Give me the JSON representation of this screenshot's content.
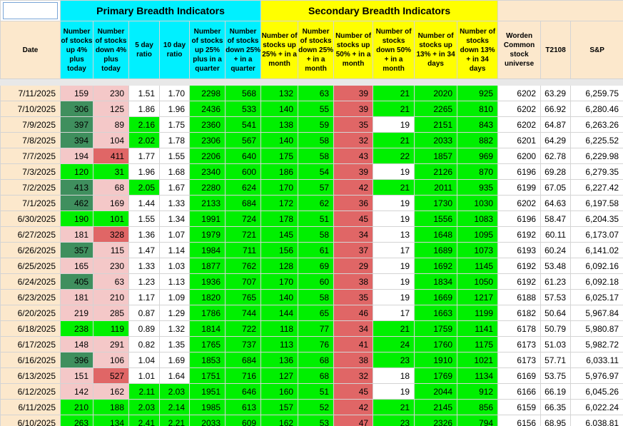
{
  "colors": {
    "dark_green": "#3f8f5e",
    "light_pink": "#f4c8c8",
    "red": "#e06666",
    "bright_green": "#00f000",
    "white": "#ffffff",
    "cyan": "#00f0ff",
    "yellow": "#ffff00",
    "peach": "#fce8cc"
  },
  "header": {
    "primary_title": "Primary Breadth Indicators",
    "secondary_title": "Secondary Breadth Indicators",
    "columns": [
      "Date",
      "Number of stocks up 4% plus today",
      "Number of stocks down 4% plus today",
      "5 day ratio",
      "10 day ratio",
      "Number of stocks up 25% plus in a quarter",
      "Number of stocks down 25% + in a quarter",
      "Number of stocks up 25% + in a month",
      "Number of stocks down 25% + in a month",
      "Number of stocks up 50% + in a month",
      "Number of stocks down 50% + in a month",
      "Number of stocks up 13% + in 34 days",
      "Number of stocks down 13% + in 34 days",
      "Worden Common stock universe",
      "T2108",
      "S&P"
    ]
  },
  "rows": [
    {
      "cells": [
        "7/11/2025",
        "159",
        "230",
        "1.51",
        "1.70",
        "2298",
        "568",
        "132",
        "63",
        "39",
        "21",
        "2020",
        "925",
        "6202",
        "63.29",
        "6,259.75"
      ],
      "fills": [
        "peach",
        "pink",
        "pink",
        "white",
        "white",
        "green",
        "green",
        "green",
        "green",
        "red",
        "green",
        "green",
        "green",
        "white",
        "white",
        "white"
      ]
    },
    {
      "cells": [
        "7/10/2025",
        "306",
        "125",
        "1.86",
        "1.96",
        "2436",
        "533",
        "140",
        "55",
        "39",
        "21",
        "2265",
        "810",
        "6202",
        "66.92",
        "6,280.46"
      ],
      "fills": [
        "peach",
        "dgreen",
        "pink",
        "white",
        "white",
        "green",
        "green",
        "green",
        "green",
        "red",
        "green",
        "green",
        "green",
        "white",
        "white",
        "white"
      ]
    },
    {
      "cells": [
        "7/9/2025",
        "397",
        "89",
        "2.16",
        "1.75",
        "2360",
        "541",
        "138",
        "59",
        "35",
        "19",
        "2151",
        "843",
        "6202",
        "64.87",
        "6,263.26"
      ],
      "fills": [
        "peach",
        "dgreen",
        "pink",
        "green",
        "white",
        "green",
        "green",
        "green",
        "green",
        "red",
        "white",
        "green",
        "green",
        "white",
        "white",
        "white"
      ]
    },
    {
      "cells": [
        "7/8/2025",
        "394",
        "104",
        "2.02",
        "1.78",
        "2306",
        "567",
        "140",
        "58",
        "32",
        "21",
        "2033",
        "882",
        "6201",
        "64.29",
        "6,225.52"
      ],
      "fills": [
        "peach",
        "dgreen",
        "pink",
        "green",
        "white",
        "green",
        "green",
        "green",
        "green",
        "red",
        "green",
        "green",
        "green",
        "white",
        "white",
        "white"
      ]
    },
    {
      "cells": [
        "7/7/2025",
        "194",
        "411",
        "1.77",
        "1.55",
        "2206",
        "640",
        "175",
        "58",
        "43",
        "22",
        "1857",
        "969",
        "6200",
        "62.78",
        "6,229.98"
      ],
      "fills": [
        "peach",
        "pink",
        "red",
        "white",
        "white",
        "green",
        "green",
        "green",
        "green",
        "red",
        "green",
        "green",
        "green",
        "white",
        "white",
        "white"
      ]
    },
    {
      "cells": [
        "7/3/2025",
        "120",
        "31",
        "1.96",
        "1.68",
        "2340",
        "600",
        "186",
        "54",
        "39",
        "19",
        "2126",
        "870",
        "6196",
        "69.28",
        "6,279.35"
      ],
      "fills": [
        "peach",
        "green",
        "green",
        "white",
        "white",
        "green",
        "green",
        "green",
        "green",
        "red",
        "white",
        "green",
        "green",
        "white",
        "white",
        "white"
      ]
    },
    {
      "cells": [
        "7/2/2025",
        "413",
        "68",
        "2.05",
        "1.67",
        "2280",
        "624",
        "170",
        "57",
        "42",
        "21",
        "2011",
        "935",
        "6199",
        "67.05",
        "6,227.42"
      ],
      "fills": [
        "peach",
        "dgreen",
        "pink",
        "green",
        "white",
        "green",
        "green",
        "green",
        "green",
        "red",
        "green",
        "green",
        "green",
        "white",
        "white",
        "white"
      ]
    },
    {
      "cells": [
        "7/1/2025",
        "462",
        "169",
        "1.44",
        "1.33",
        "2133",
        "684",
        "172",
        "62",
        "36",
        "19",
        "1730",
        "1030",
        "6202",
        "64.63",
        "6,197.58"
      ],
      "fills": [
        "peach",
        "dgreen",
        "pink",
        "white",
        "white",
        "green",
        "green",
        "green",
        "green",
        "red",
        "white",
        "green",
        "green",
        "white",
        "white",
        "white"
      ]
    },
    {
      "cells": [
        "6/30/2025",
        "190",
        "101",
        "1.55",
        "1.34",
        "1991",
        "724",
        "178",
        "51",
        "45",
        "19",
        "1556",
        "1083",
        "6196",
        "58.47",
        "6,204.35"
      ],
      "fills": [
        "peach",
        "green",
        "green",
        "white",
        "white",
        "green",
        "green",
        "green",
        "green",
        "red",
        "white",
        "green",
        "green",
        "white",
        "white",
        "white"
      ]
    },
    {
      "cells": [
        "6/27/2025",
        "181",
        "328",
        "1.36",
        "1.07",
        "1979",
        "721",
        "145",
        "58",
        "34",
        "13",
        "1648",
        "1095",
        "6192",
        "60.11",
        "6,173.07"
      ],
      "fills": [
        "peach",
        "pink",
        "red",
        "white",
        "white",
        "green",
        "green",
        "green",
        "green",
        "red",
        "white",
        "green",
        "green",
        "white",
        "white",
        "white"
      ]
    },
    {
      "cells": [
        "6/26/2025",
        "357",
        "115",
        "1.47",
        "1.14",
        "1984",
        "711",
        "156",
        "61",
        "37",
        "17",
        "1689",
        "1073",
        "6193",
        "60.24",
        "6,141.02"
      ],
      "fills": [
        "peach",
        "dgreen",
        "pink",
        "white",
        "white",
        "green",
        "green",
        "green",
        "green",
        "red",
        "white",
        "green",
        "green",
        "white",
        "white",
        "white"
      ]
    },
    {
      "cells": [
        "6/25/2025",
        "165",
        "230",
        "1.33",
        "1.03",
        "1877",
        "762",
        "128",
        "69",
        "29",
        "19",
        "1692",
        "1145",
        "6192",
        "53.48",
        "6,092.16"
      ],
      "fills": [
        "peach",
        "pink",
        "pink",
        "white",
        "white",
        "green",
        "green",
        "green",
        "green",
        "red",
        "white",
        "green",
        "green",
        "white",
        "white",
        "white"
      ]
    },
    {
      "cells": [
        "6/24/2025",
        "405",
        "63",
        "1.23",
        "1.13",
        "1936",
        "707",
        "170",
        "60",
        "38",
        "19",
        "1834",
        "1050",
        "6192",
        "61.23",
        "6,092.18"
      ],
      "fills": [
        "peach",
        "dgreen",
        "pink",
        "white",
        "white",
        "green",
        "green",
        "green",
        "green",
        "red",
        "white",
        "green",
        "green",
        "white",
        "white",
        "white"
      ]
    },
    {
      "cells": [
        "6/23/2025",
        "181",
        "210",
        "1.17",
        "1.09",
        "1820",
        "765",
        "140",
        "58",
        "35",
        "19",
        "1669",
        "1217",
        "6188",
        "57.53",
        "6,025.17"
      ],
      "fills": [
        "peach",
        "pink",
        "pink",
        "white",
        "white",
        "green",
        "green",
        "green",
        "green",
        "red",
        "white",
        "green",
        "green",
        "white",
        "white",
        "white"
      ]
    },
    {
      "cells": [
        "6/20/2025",
        "219",
        "285",
        "0.87",
        "1.29",
        "1786",
        "744",
        "144",
        "65",
        "46",
        "17",
        "1663",
        "1199",
        "6182",
        "50.64",
        "5,967.84"
      ],
      "fills": [
        "peach",
        "pink",
        "pink",
        "white",
        "white",
        "green",
        "green",
        "green",
        "green",
        "red",
        "white",
        "green",
        "green",
        "white",
        "white",
        "white"
      ]
    },
    {
      "cells": [
        "6/18/2025",
        "238",
        "119",
        "0.89",
        "1.32",
        "1814",
        "722",
        "118",
        "77",
        "34",
        "21",
        "1759",
        "1141",
        "6178",
        "50.79",
        "5,980.87"
      ],
      "fills": [
        "peach",
        "green",
        "green",
        "white",
        "white",
        "green",
        "green",
        "green",
        "green",
        "red",
        "green",
        "green",
        "green",
        "white",
        "white",
        "white"
      ]
    },
    {
      "cells": [
        "6/17/2025",
        "148",
        "291",
        "0.82",
        "1.35",
        "1765",
        "737",
        "113",
        "76",
        "41",
        "24",
        "1760",
        "1175",
        "6173",
        "51.03",
        "5,982.72"
      ],
      "fills": [
        "peach",
        "pink",
        "pink",
        "white",
        "white",
        "green",
        "green",
        "green",
        "green",
        "red",
        "green",
        "green",
        "green",
        "white",
        "white",
        "white"
      ]
    },
    {
      "cells": [
        "6/16/2025",
        "396",
        "106",
        "1.04",
        "1.69",
        "1853",
        "684",
        "136",
        "68",
        "38",
        "23",
        "1910",
        "1021",
        "6173",
        "57.71",
        "6,033.11"
      ],
      "fills": [
        "peach",
        "dgreen",
        "pink",
        "white",
        "white",
        "green",
        "green",
        "green",
        "green",
        "red",
        "green",
        "green",
        "green",
        "white",
        "white",
        "white"
      ]
    },
    {
      "cells": [
        "6/13/2025",
        "151",
        "527",
        "1.01",
        "1.64",
        "1751",
        "716",
        "127",
        "68",
        "32",
        "18",
        "1769",
        "1134",
        "6169",
        "53.75",
        "5,976.97"
      ],
      "fills": [
        "peach",
        "pink",
        "red",
        "white",
        "white",
        "green",
        "green",
        "green",
        "green",
        "red",
        "white",
        "green",
        "green",
        "white",
        "white",
        "white"
      ]
    },
    {
      "cells": [
        "6/12/2025",
        "142",
        "162",
        "2.11",
        "2.03",
        "1951",
        "646",
        "160",
        "51",
        "45",
        "19",
        "2044",
        "912",
        "6166",
        "66.19",
        "6,045.26"
      ],
      "fills": [
        "peach",
        "pink",
        "pink",
        "green",
        "green",
        "green",
        "green",
        "green",
        "green",
        "red",
        "white",
        "green",
        "green",
        "white",
        "white",
        "white"
      ]
    },
    {
      "cells": [
        "6/11/2025",
        "210",
        "188",
        "2.03",
        "2.14",
        "1985",
        "613",
        "157",
        "52",
        "42",
        "21",
        "2145",
        "856",
        "6159",
        "66.35",
        "6,022.24"
      ],
      "fills": [
        "peach",
        "green",
        "green",
        "green",
        "green",
        "green",
        "green",
        "green",
        "green",
        "red",
        "green",
        "green",
        "green",
        "white",
        "white",
        "white"
      ]
    },
    {
      "cells": [
        "6/10/2025",
        "263",
        "134",
        "2.41",
        "2.21",
        "2033",
        "609",
        "162",
        "53",
        "47",
        "23",
        "2326",
        "794",
        "6156",
        "68.95",
        "6,038.81"
      ],
      "fills": [
        "peach",
        "green",
        "green",
        "green",
        "green",
        "green",
        "green",
        "green",
        "green",
        "red",
        "green",
        "green",
        "green",
        "white",
        "white",
        "white"
      ]
    }
  ]
}
